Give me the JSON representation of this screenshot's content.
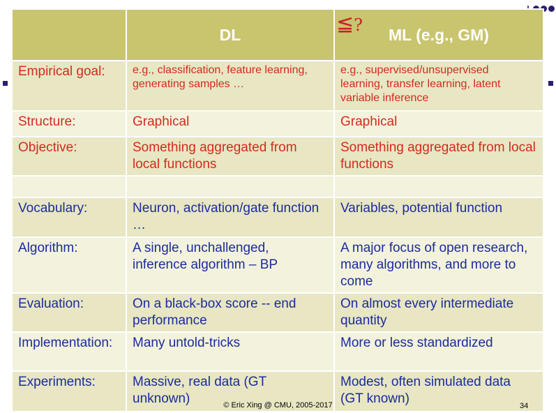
{
  "header": {
    "col1": "",
    "col2": "DL",
    "col3": "ML (e.g., GM)",
    "relation_symbol": "≦",
    "relation_mark": "?"
  },
  "rows": [
    {
      "label": "Empirical goal:",
      "dl": "e.g., classification, feature learning,\ngenerating samples …",
      "ml": "e.g., supervised/unsupervised\nlearning, transfer learning, latent\nvariable inference",
      "color": "red"
    },
    {
      "label": "Structure:",
      "dl": "Graphical",
      "ml": "Graphical",
      "color": "red"
    },
    {
      "label": "Objective:",
      "dl": "Something aggregated from\nlocal functions",
      "ml": "Something aggregated from local\nfunctions",
      "color": "red"
    },
    {
      "label": "",
      "dl": "",
      "ml": "",
      "color": "red"
    },
    {
      "label": "Vocabulary:",
      "dl": "Neuron, activation/gate function\n…",
      "ml": "Variables, potential function",
      "color": "blue"
    },
    {
      "label": "Algorithm:",
      "dl": "A single, unchallenged,\ninference algorithm – BP",
      "ml": "A major focus of open research,\nmany algorithms, and more to\ncome",
      "color": "blue"
    },
    {
      "label": "Evaluation:",
      "dl": "On a black-box score -- end\nperformance",
      "ml": "On almost every intermediate\nquantity",
      "color": "blue"
    },
    {
      "label": "Implementation:",
      "dl": "Many untold-tricks",
      "ml": "More or less standardized",
      "color": "blue"
    },
    {
      "label": "Experiments:",
      "dl": "Massive, real data (GT\nunknown)",
      "ml": "Modest, often simulated data\n(GT known)",
      "color": "blue"
    }
  ],
  "footer": {
    "credit": "© Eric Xing @ CMU, 2005-2017",
    "page": "34"
  },
  "colors": {
    "header_bg": "#c9c46e",
    "row_light": "#f3f2dd",
    "row_dark": "#e8e6c3",
    "red_text": "#d42a1e",
    "blue_text": "#1b2c9c"
  }
}
